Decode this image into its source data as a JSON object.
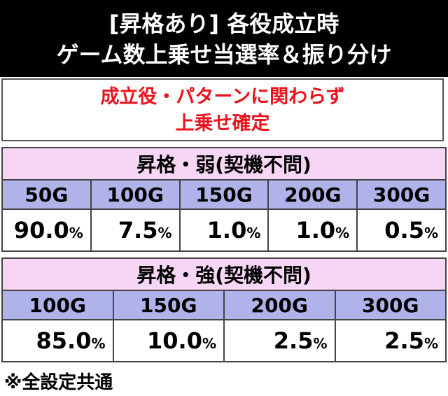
{
  "header": {
    "lines": [
      "[昇格あり] 各役成立時",
      "ゲーム数上乗せ当選率＆振り分け"
    ]
  },
  "notice": {
    "lines": [
      "成立役・パターンに関わらず",
      "上乗せ確定"
    ]
  },
  "tables": [
    {
      "title": "昇格・弱(契機不問)",
      "columns": [
        "50G",
        "100G",
        "150G",
        "200G",
        "300G"
      ],
      "rates": [
        {
          "value": "90.0",
          "unit": "%"
        },
        {
          "value": "7.5",
          "unit": "%"
        },
        {
          "value": "1.0",
          "unit": "%"
        },
        {
          "value": "1.0",
          "unit": "%"
        },
        {
          "value": "0.5",
          "unit": "%"
        }
      ]
    },
    {
      "title": "昇格・強(契機不問)",
      "columns": [
        "100G",
        "150G",
        "200G",
        "300G"
      ],
      "rates": [
        {
          "value": "85.0",
          "unit": "%"
        },
        {
          "value": "10.0",
          "unit": "%"
        },
        {
          "value": "2.5",
          "unit": "%"
        },
        {
          "value": "2.5",
          "unit": "%"
        }
      ]
    }
  ],
  "footnote": "※全設定共通"
}
